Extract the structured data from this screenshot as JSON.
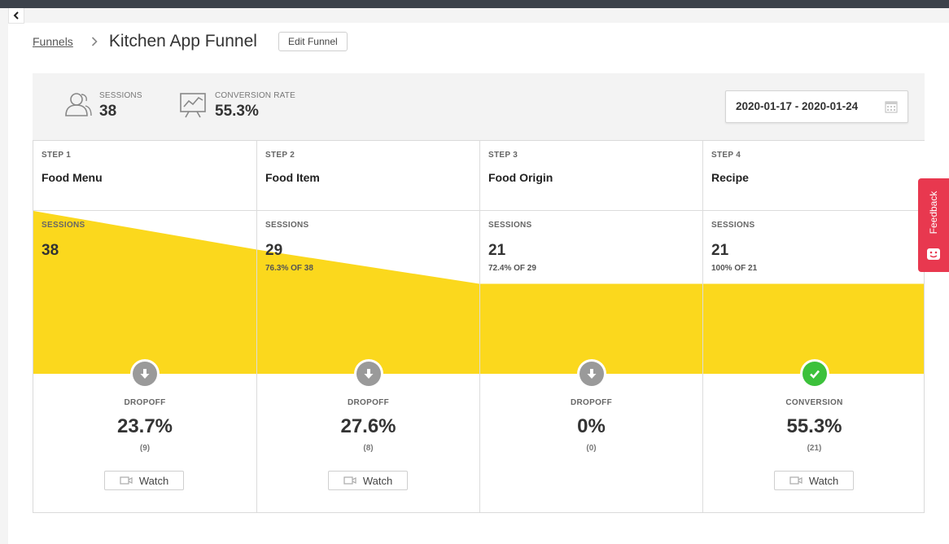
{
  "breadcrumb": {
    "parent": "Funnels",
    "title": "Kitchen App Funnel",
    "edit_label": "Edit Funnel"
  },
  "stats": {
    "sessions_label": "SESSIONS",
    "sessions_value": "38",
    "conversion_label": "CONVERSION RATE",
    "conversion_value": "55.3%"
  },
  "date_range": "2020-01-17 - 2020-01-24",
  "colors": {
    "funnel_fill": "#fbd81d",
    "dropoff_badge": "#9a9a9a",
    "conversion_badge": "#3cc13b",
    "feedback": "#e8384f"
  },
  "steps": [
    {
      "step_label": "STEP 1",
      "name": "Food Menu",
      "sessions_label": "SESSIONS",
      "sessions": 38,
      "pct_text": "",
      "result_label": "DROPOFF",
      "result_value": "23.7%",
      "result_count": "(9)",
      "watch_label": "Watch",
      "has_watch": true,
      "result_type": "dropoff"
    },
    {
      "step_label": "STEP 2",
      "name": "Food Item",
      "sessions_label": "SESSIONS",
      "sessions": 29,
      "pct_text": "76.3% OF 38",
      "result_label": "DROPOFF",
      "result_value": "27.6%",
      "result_count": "(8)",
      "watch_label": "Watch",
      "has_watch": true,
      "result_type": "dropoff"
    },
    {
      "step_label": "STEP 3",
      "name": "Food Origin",
      "sessions_label": "SESSIONS",
      "sessions": 21,
      "pct_text": "72.4% OF 29",
      "result_label": "DROPOFF",
      "result_value": "0%",
      "result_count": "(0)",
      "watch_label": "",
      "has_watch": false,
      "result_type": "dropoff"
    },
    {
      "step_label": "STEP 4",
      "name": "Recipe",
      "sessions_label": "SESSIONS",
      "sessions": 21,
      "pct_text": "100% OF 21",
      "result_label": "CONVERSION",
      "result_value": "55.3%",
      "result_count": "(21)",
      "watch_label": "Watch",
      "has_watch": true,
      "result_type": "conversion"
    }
  ],
  "feedback_label": "Feedback"
}
